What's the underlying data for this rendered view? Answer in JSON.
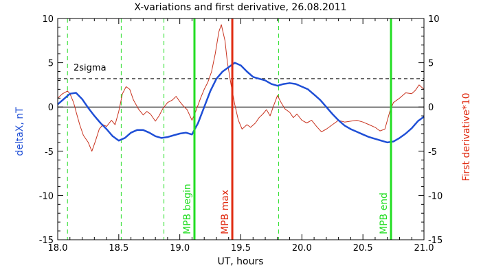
{
  "chart_data": {
    "type": "line",
    "title": "X-variations and first derivative, 26.08.2011",
    "xlabel": "UT, hours",
    "ylabel_left": "deltaX, nT",
    "ylabel_right": "First derivative*10",
    "xlim": [
      18.0,
      21.0
    ],
    "ylim": [
      -15,
      10
    ],
    "x_ticks": [
      "18.0",
      "18.5",
      "19.0",
      "19.5",
      "20.0",
      "20.5",
      "21.0"
    ],
    "y_ticks": [
      "10",
      "5",
      "0",
      "-5",
      "-10",
      "-15"
    ],
    "colors": {
      "deltaX": "#1f4fd6",
      "derivative": "#c8321e",
      "green": "#22dd22",
      "red": "#e02a10",
      "axis": "#000000"
    },
    "series": [
      {
        "key": "deltaX",
        "values": [
          [
            18.0,
            0.3
          ],
          [
            18.05,
            0.9
          ],
          [
            18.1,
            1.5
          ],
          [
            18.15,
            1.6
          ],
          [
            18.2,
            0.9
          ],
          [
            18.25,
            -0.1
          ],
          [
            18.3,
            -1.0
          ],
          [
            18.35,
            -1.8
          ],
          [
            18.4,
            -2.5
          ],
          [
            18.45,
            -3.3
          ],
          [
            18.5,
            -3.8
          ],
          [
            18.55,
            -3.5
          ],
          [
            18.6,
            -2.9
          ],
          [
            18.65,
            -2.6
          ],
          [
            18.7,
            -2.6
          ],
          [
            18.75,
            -2.9
          ],
          [
            18.8,
            -3.3
          ],
          [
            18.85,
            -3.5
          ],
          [
            18.9,
            -3.4
          ],
          [
            18.95,
            -3.2
          ],
          [
            19.0,
            -3.0
          ],
          [
            19.05,
            -2.9
          ],
          [
            19.1,
            -3.1
          ],
          [
            19.15,
            -1.8
          ],
          [
            19.2,
            0.0
          ],
          [
            19.25,
            1.8
          ],
          [
            19.3,
            3.2
          ],
          [
            19.35,
            4.0
          ],
          [
            19.4,
            4.5
          ],
          [
            19.45,
            5.0
          ],
          [
            19.5,
            4.7
          ],
          [
            19.55,
            4.0
          ],
          [
            19.6,
            3.4
          ],
          [
            19.65,
            3.2
          ],
          [
            19.7,
            3.0
          ],
          [
            19.75,
            2.6
          ],
          [
            19.8,
            2.4
          ],
          [
            19.85,
            2.6
          ],
          [
            19.9,
            2.7
          ],
          [
            19.95,
            2.6
          ],
          [
            20.0,
            2.3
          ],
          [
            20.05,
            2.0
          ],
          [
            20.1,
            1.4
          ],
          [
            20.15,
            0.8
          ],
          [
            20.2,
            0.0
          ],
          [
            20.25,
            -0.8
          ],
          [
            20.3,
            -1.5
          ],
          [
            20.35,
            -2.1
          ],
          [
            20.4,
            -2.5
          ],
          [
            20.45,
            -2.8
          ],
          [
            20.5,
            -3.1
          ],
          [
            20.55,
            -3.4
          ],
          [
            20.6,
            -3.6
          ],
          [
            20.65,
            -3.8
          ],
          [
            20.7,
            -4.0
          ],
          [
            20.75,
            -3.9
          ],
          [
            20.8,
            -3.5
          ],
          [
            20.85,
            -3.0
          ],
          [
            20.9,
            -2.4
          ],
          [
            20.95,
            -1.6
          ],
          [
            21.0,
            -1.1
          ]
        ]
      },
      {
        "key": "derivative",
        "values": [
          [
            18.0,
            1.0
          ],
          [
            18.04,
            1.5
          ],
          [
            18.08,
            1.8
          ],
          [
            18.1,
            1.5
          ],
          [
            18.13,
            0.5
          ],
          [
            18.15,
            -0.5
          ],
          [
            18.18,
            -2.0
          ],
          [
            18.21,
            -3.2
          ],
          [
            18.25,
            -4.0
          ],
          [
            18.28,
            -5.0
          ],
          [
            18.31,
            -3.8
          ],
          [
            18.34,
            -2.5
          ],
          [
            18.37,
            -2.0
          ],
          [
            18.4,
            -2.2
          ],
          [
            18.44,
            -1.5
          ],
          [
            18.47,
            -2.0
          ],
          [
            18.5,
            -0.5
          ],
          [
            18.53,
            1.5
          ],
          [
            18.56,
            2.3
          ],
          [
            18.59,
            2.0
          ],
          [
            18.62,
            0.8
          ],
          [
            18.66,
            -0.2
          ],
          [
            18.7,
            -0.9
          ],
          [
            18.73,
            -0.5
          ],
          [
            18.76,
            -0.8
          ],
          [
            18.8,
            -1.6
          ],
          [
            18.83,
            -1.0
          ],
          [
            18.86,
            -0.2
          ],
          [
            18.9,
            0.5
          ],
          [
            18.94,
            0.8
          ],
          [
            18.97,
            1.2
          ],
          [
            19.0,
            0.6
          ],
          [
            19.03,
            0.1
          ],
          [
            19.06,
            -0.3
          ],
          [
            19.1,
            -1.5
          ],
          [
            19.13,
            -0.5
          ],
          [
            19.17,
            1.0
          ],
          [
            19.2,
            2.0
          ],
          [
            19.23,
            2.8
          ],
          [
            19.26,
            4.0
          ],
          [
            19.29,
            6.0
          ],
          [
            19.32,
            8.5
          ],
          [
            19.34,
            9.3
          ],
          [
            19.37,
            7.5
          ],
          [
            19.39,
            5.0
          ],
          [
            19.42,
            2.5
          ],
          [
            19.45,
            0.3
          ],
          [
            19.48,
            -1.5
          ],
          [
            19.51,
            -2.5
          ],
          [
            19.55,
            -2.0
          ],
          [
            19.58,
            -2.3
          ],
          [
            19.62,
            -1.8
          ],
          [
            19.65,
            -1.2
          ],
          [
            19.68,
            -0.8
          ],
          [
            19.71,
            -0.3
          ],
          [
            19.74,
            -1.0
          ],
          [
            19.77,
            0.2
          ],
          [
            19.8,
            1.3
          ],
          [
            19.83,
            0.5
          ],
          [
            19.86,
            -0.2
          ],
          [
            19.9,
            -0.6
          ],
          [
            19.93,
            -1.2
          ],
          [
            19.96,
            -0.8
          ],
          [
            20.0,
            -1.5
          ],
          [
            20.04,
            -1.8
          ],
          [
            20.08,
            -1.5
          ],
          [
            20.12,
            -2.2
          ],
          [
            20.16,
            -2.8
          ],
          [
            20.2,
            -2.5
          ],
          [
            20.25,
            -2.0
          ],
          [
            20.3,
            -1.5
          ],
          [
            20.35,
            -1.7
          ],
          [
            20.4,
            -1.6
          ],
          [
            20.45,
            -1.5
          ],
          [
            20.5,
            -1.7
          ],
          [
            20.55,
            -2.0
          ],
          [
            20.6,
            -2.3
          ],
          [
            20.64,
            -2.7
          ],
          [
            20.68,
            -2.5
          ],
          [
            20.72,
            -0.5
          ],
          [
            20.75,
            0.5
          ],
          [
            20.8,
            1.0
          ],
          [
            20.85,
            1.6
          ],
          [
            20.9,
            1.5
          ],
          [
            20.93,
            1.9
          ],
          [
            20.96,
            2.5
          ],
          [
            21.0,
            2.0
          ]
        ]
      }
    ],
    "threshold": {
      "label": "2sigma",
      "y": 3.2
    },
    "zero_line": 0,
    "dashed_verticals": [
      18.08,
      18.52,
      18.87,
      19.81
    ],
    "markers": [
      {
        "label": "MPB begin",
        "x": 19.12,
        "color": "#22dd22"
      },
      {
        "label": "MPB max",
        "x": 19.43,
        "color": "#e02a10"
      },
      {
        "label": "MPB end",
        "x": 20.73,
        "color": "#22dd22"
      }
    ]
  }
}
